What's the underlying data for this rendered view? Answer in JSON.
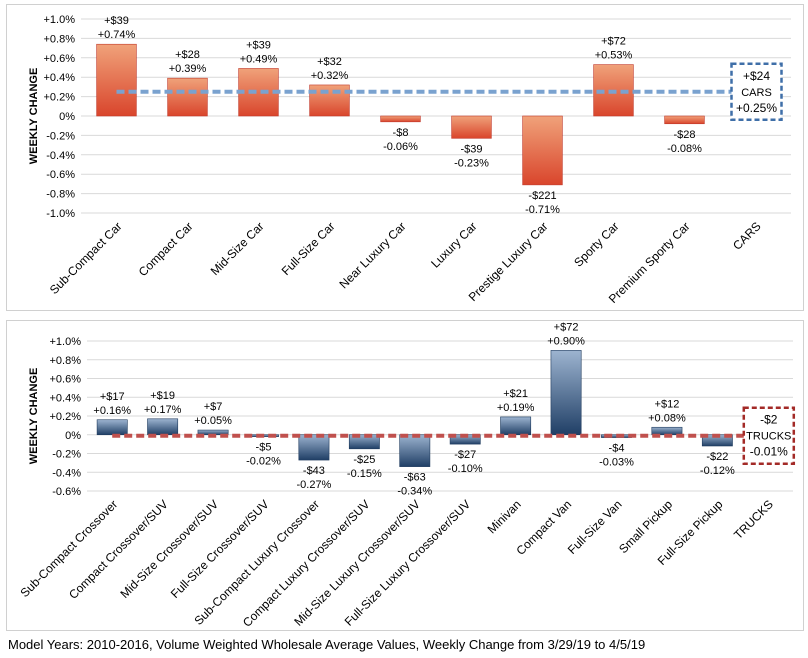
{
  "footnote": "Model Years: 2010-2016, Volume Weighted Wholesale Average Values, Weekly Change from 3/29/19 to 4/5/19",
  "colors": {
    "cars_bar_top": "#f0a27a",
    "cars_bar_bottom": "#d9452c",
    "cars_dash": "#7aa2cf",
    "cars_box": "#3f6fa8",
    "trucks_bar_top": "#9db4d0",
    "trucks_bar_bottom": "#203f66",
    "trucks_dash": "#c0504d",
    "trucks_box": "#a32a27",
    "grid": "#d9d9d9"
  },
  "chart_data": [
    {
      "type": "bar",
      "ylabel": "WEEKLY CHANGE",
      "ylim": [
        -1.0,
        1.0
      ],
      "yticks": [
        "+1.0%",
        "+0.8%",
        "+0.6%",
        "+0.4%",
        "+0.2%",
        "0%",
        "-0.2%",
        "-0.4%",
        "-0.6%",
        "-0.8%",
        "-1.0%"
      ],
      "ytick_values": [
        1.0,
        0.8,
        0.6,
        0.4,
        0.2,
        0,
        -0.2,
        -0.4,
        -0.6,
        -0.8,
        -1.0
      ],
      "categories": [
        "Sub-Compact Car",
        "Compact Car",
        "Mid-Size Car",
        "Full-Size Car",
        "Near Luxury Car",
        "Luxury Car",
        "Prestige Luxury Car",
        "Sporty Car",
        "Premium Sporty Car",
        "CARS"
      ],
      "values": [
        0.74,
        0.39,
        0.49,
        0.32,
        -0.06,
        -0.23,
        -0.71,
        0.53,
        -0.08,
        null
      ],
      "dollar_labels": [
        "+$39",
        "+$28",
        "+$39",
        "+$32",
        "-$8",
        "-$39",
        "-$221",
        "+$72",
        "-$28",
        null
      ],
      "pct_labels": [
        "+0.74%",
        "+0.39%",
        "+0.49%",
        "+0.32%",
        "-0.06%",
        "-0.23%",
        "-0.71%",
        "+0.53%",
        "-0.08%",
        null
      ],
      "segment_average": {
        "value": 0.25,
        "dollar_label": "+$24",
        "name": "CARS",
        "pct_label": "+0.25%"
      }
    },
    {
      "type": "bar",
      "ylabel": "WEEKLY CHANGE",
      "ylim": [
        -0.6,
        1.0
      ],
      "yticks": [
        "+1.0%",
        "+0.8%",
        "+0.6%",
        "+0.4%",
        "+0.2%",
        "0%",
        "-0.2%",
        "-0.4%",
        "-0.6%"
      ],
      "ytick_values": [
        1.0,
        0.8,
        0.6,
        0.4,
        0.2,
        0,
        -0.2,
        -0.4,
        -0.6
      ],
      "categories": [
        "Sub-Compact Crossover",
        "Compact Crossover/SUV",
        "Mid-Size Crossover/SUV",
        "Full-Size Crossover/SUV",
        "Sub-Compact Luxury Crossover",
        "Compact Luxury Crossover/SUV",
        "Mid-Size Luxury Crossover/SUV",
        "Full-Size Luxury Crossover/SUV",
        "Minivan",
        "Compact Van",
        "Full-Size Van",
        "Small Pickup",
        "Full-Size Pickup",
        "TRUCKS"
      ],
      "values": [
        0.16,
        0.17,
        0.05,
        -0.02,
        -0.27,
        -0.15,
        -0.34,
        -0.1,
        0.19,
        0.9,
        -0.03,
        0.08,
        -0.12,
        null
      ],
      "dollar_labels": [
        "+$17",
        "+$19",
        "+$7",
        "-$5",
        "-$43",
        "-$25",
        "-$63",
        "-$27",
        "+$21",
        "+$72",
        "-$4",
        "+$12",
        "-$22",
        null
      ],
      "pct_labels": [
        "+0.16%",
        "+0.17%",
        "+0.05%",
        "-0.02%",
        "-0.27%",
        "-0.15%",
        "-0.34%",
        "-0.10%",
        "+0.19%",
        "+0.90%",
        "-0.03%",
        "+0.08%",
        "-0.12%",
        null
      ],
      "segment_average": {
        "value": -0.01,
        "dollar_label": "-$2",
        "name": "TRUCKS",
        "pct_label": "-0.01%"
      }
    }
  ]
}
